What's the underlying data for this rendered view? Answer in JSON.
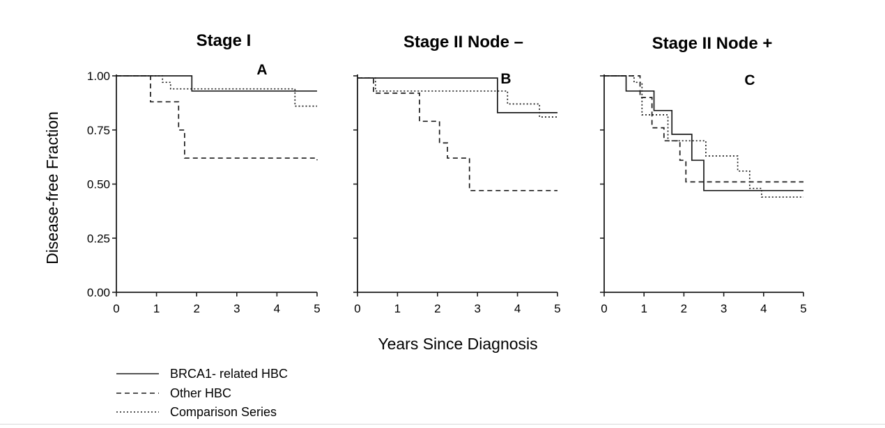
{
  "chart_data": {
    "type": "line",
    "step": true,
    "xlabel": "Years Since Diagnosis",
    "ylabel": "Disease-free Fraction",
    "xlim": [
      0,
      5
    ],
    "ylim": [
      0,
      1
    ],
    "x_ticks": [
      0,
      1,
      2,
      3,
      4,
      5
    ],
    "x_tick_labels": [
      "0",
      "1",
      "2",
      "3",
      "4",
      "5"
    ],
    "y_ticks": [
      0,
      0.25,
      0.5,
      0.75,
      1
    ],
    "y_tick_labels": [
      "0.00",
      "0.25",
      "0.50",
      "0.75",
      "1.00"
    ],
    "legend": [
      {
        "key": "brca1",
        "label": "BRCA1- related HBC",
        "style": "solid"
      },
      {
        "key": "other",
        "label": "Other HBC",
        "style": "dashed"
      },
      {
        "key": "comparison",
        "label": "Comparison Series",
        "style": "dotted"
      }
    ],
    "legend_position": "bottom-left",
    "panels": [
      {
        "id": "A",
        "title": "Stage I",
        "letter": "A",
        "series": [
          {
            "key": "brca1",
            "x": [
              0,
              1.88,
              5
            ],
            "y": [
              1.0,
              0.93,
              0.93
            ]
          },
          {
            "key": "other",
            "x": [
              0,
              0.85,
              1.55,
              1.7,
              1.8,
              5
            ],
            "y": [
              1.0,
              0.88,
              0.75,
              0.62,
              0.62,
              0.61
            ]
          },
          {
            "key": "comparison",
            "x": [
              0,
              1.15,
              1.35,
              4.45,
              5
            ],
            "y": [
              1.0,
              0.97,
              0.94,
              0.86,
              0.86
            ]
          }
        ]
      },
      {
        "id": "B",
        "title": "Stage II Node –",
        "letter": "B",
        "series": [
          {
            "key": "brca1",
            "x": [
              0,
              3.5,
              5
            ],
            "y": [
              0.99,
              0.83,
              0.83
            ]
          },
          {
            "key": "other",
            "x": [
              0,
              0.4,
              1.55,
              2.05,
              2.25,
              2.8,
              5
            ],
            "y": [
              0.99,
              0.92,
              0.79,
              0.69,
              0.62,
              0.47,
              0.47
            ]
          },
          {
            "key": "comparison",
            "x": [
              0,
              0.45,
              3.75,
              4.55,
              5
            ],
            "y": [
              0.99,
              0.93,
              0.87,
              0.81,
              0.81
            ]
          }
        ]
      },
      {
        "id": "C",
        "title": "Stage II Node +",
        "letter": "C",
        "series": [
          {
            "key": "brca1",
            "x": [
              0,
              0.55,
              1.25,
              1.7,
              2.2,
              2.5,
              5
            ],
            "y": [
              1.0,
              0.93,
              0.84,
              0.73,
              0.61,
              0.47,
              0.47
            ]
          },
          {
            "key": "other",
            "x": [
              0,
              0.9,
              1.2,
              1.5,
              1.9,
              2.05,
              5
            ],
            "y": [
              1.0,
              0.9,
              0.76,
              0.7,
              0.61,
              0.51,
              0.51
            ]
          },
          {
            "key": "comparison",
            "x": [
              0,
              0.75,
              0.95,
              1.6,
              2.55,
              3.35,
              3.65,
              3.95,
              5
            ],
            "y": [
              1.0,
              0.97,
              0.82,
              0.7,
              0.63,
              0.56,
              0.48,
              0.44,
              0.44
            ]
          }
        ]
      }
    ]
  }
}
